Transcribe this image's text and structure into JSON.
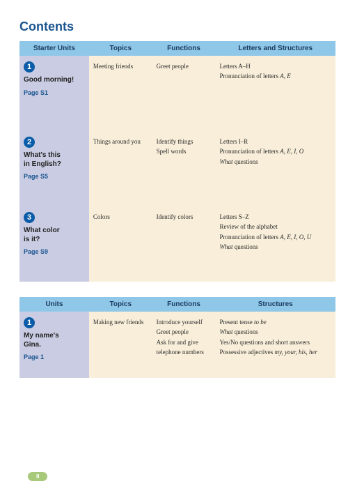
{
  "title": "Contents",
  "starter_header": [
    "Starter Units",
    "Topics",
    "Functions",
    "Letters and Structures"
  ],
  "starter_rows": [
    {
      "num": "1",
      "title": "Good morning!",
      "page": "Page S1",
      "topics": [
        "Meeting friends"
      ],
      "functions": [
        "Greet people"
      ],
      "structures": [
        {
          "text": "Letters A–H"
        },
        {
          "pre": "Pronunciation of letters ",
          "ital": "A, E"
        }
      ]
    },
    {
      "num": "2",
      "title_l1": "What's this",
      "title_l2": "in English?",
      "page": "Page S5",
      "topics": [
        "Things around you"
      ],
      "functions": [
        "Identify things",
        "Spell words"
      ],
      "structures": [
        {
          "text": "Letters I–R"
        },
        {
          "pre": "Pronunciation of letters ",
          "ital": "A, E, I, O"
        },
        {
          "ital": "What",
          "post": " questions"
        }
      ]
    },
    {
      "num": "3",
      "title_l1": "What color",
      "title_l2": "is it?",
      "page": "Page S9",
      "topics": [
        "Colors"
      ],
      "functions": [
        "Identify colors"
      ],
      "structures": [
        {
          "text": "Letters S–Z"
        },
        {
          "text": "Review of the alphabet"
        },
        {
          "pre": "Pronunciation of letters ",
          "ital": "A, E, I, O, U"
        },
        {
          "ital": "What",
          "post": " questions"
        }
      ]
    }
  ],
  "units_header": [
    "Units",
    "Topics",
    "Functions",
    "Structures"
  ],
  "units_rows": [
    {
      "num": "1",
      "title_l1": "My name's",
      "title_l2": "Gina.",
      "page": "Page 1",
      "topics": [
        "Making new friends"
      ],
      "functions": [
        "Introduce yourself",
        "Greet people",
        "Ask for and give telephone numbers"
      ],
      "structures": [
        {
          "pre": "Present tense ",
          "ital": "to be"
        },
        {
          "ital": "What",
          "post": " questions"
        },
        {
          "text": "Yes/No questions and short answers"
        },
        {
          "pre": "Possessive adjectives ",
          "ital": "my, your, his, her"
        }
      ]
    }
  ],
  "page_badge": "II",
  "colors": {
    "title": "#1a5490",
    "header_bg": "#8fc7e8",
    "lavender": "#c9cce2",
    "cream": "#f8eed9",
    "circle": "#0a5ca8",
    "badge": "#a9c97a"
  }
}
